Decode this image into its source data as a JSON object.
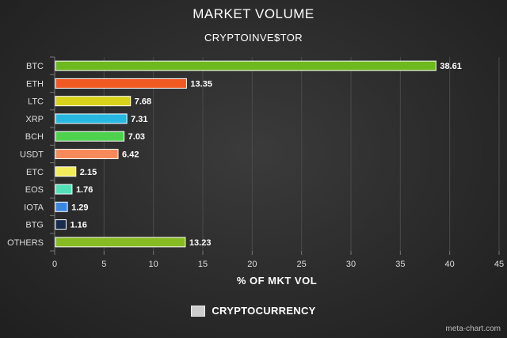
{
  "chart_data": {
    "type": "bar",
    "orientation": "horizontal",
    "title": "MARKET VOLUME",
    "subtitle": "CRYPTOINVE$TOR",
    "xlabel": "% OF MKT VOL",
    "ylabel": "",
    "xlim": [
      0,
      45
    ],
    "xticks": [
      0,
      5,
      10,
      15,
      20,
      25,
      30,
      35,
      40,
      45
    ],
    "grid": true,
    "legend_position": "bottom",
    "categories": [
      "BTC",
      "ETH",
      "LTC",
      "XRP",
      "BCH",
      "USDT",
      "ETC",
      "EOS",
      "IOTA",
      "BTG",
      "OTHERS"
    ],
    "series": [
      {
        "name": "CRYPTOCURRENCY",
        "values": [
          38.61,
          13.35,
          7.68,
          7.31,
          7.03,
          6.42,
          2.15,
          1.76,
          1.29,
          1.16,
          13.23
        ],
        "labels": [
          "38.61",
          "13.35",
          "7.68",
          "7.31",
          "7.03",
          "6.42",
          "2.15",
          "1.76",
          "1.29",
          "1.16",
          "13.23"
        ],
        "colors": [
          "#6db91f",
          "#f05a22",
          "#d8d21a",
          "#27b7e0",
          "#4ed24e",
          "#f78a5a",
          "#f3ec5a",
          "#52e0b8",
          "#3d86e0",
          "#1a2c4e",
          "#86bb22"
        ]
      }
    ],
    "legend_color": "#cccccc"
  },
  "watermark": "meta-chart.com"
}
